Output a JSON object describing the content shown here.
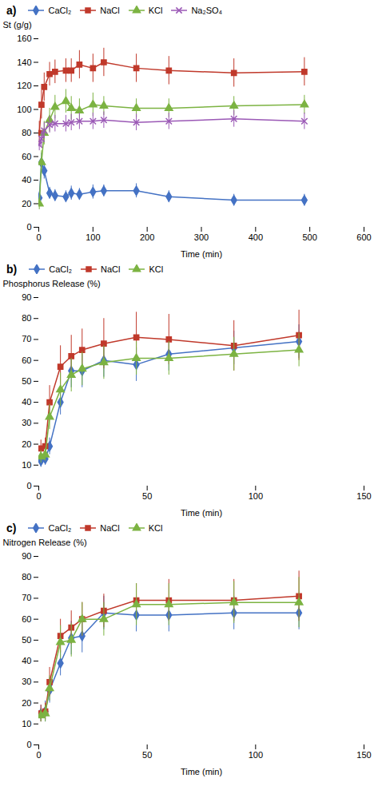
{
  "chart_data": [
    {
      "type": "line",
      "title": "a)",
      "xlabel": "Time (min)",
      "ylabel": "St (g/g)",
      "xlim": [
        0,
        600
      ],
      "ylim": [
        0,
        160
      ],
      "xticks": [
        0,
        100,
        200,
        300,
        400,
        500,
        600
      ],
      "yticks": [
        0,
        20,
        40,
        60,
        80,
        100,
        120,
        140,
        160
      ],
      "grid": false,
      "legend": "top",
      "x": [
        1,
        5,
        10,
        20,
        30,
        50,
        60,
        75,
        100,
        120,
        180,
        240,
        360,
        490
      ],
      "series": [
        {
          "name": "CaCl₂",
          "color": "#4472C4",
          "marker": "diamond",
          "values": [
            25,
            55,
            48,
            29,
            27,
            26,
            29,
            28,
            30,
            31,
            31,
            26,
            23,
            23
          ],
          "yerr": [
            5,
            8,
            7,
            5,
            5,
            5,
            6,
            5,
            6,
            5,
            6,
            5,
            5,
            5
          ]
        },
        {
          "name": "NaCl",
          "color": "#C0392B",
          "marker": "square",
          "values": [
            80,
            104,
            119,
            130,
            132,
            133,
            133,
            138,
            135,
            140,
            135,
            133,
            131,
            132
          ],
          "yerr": [
            10,
            12,
            12,
            10,
            10,
            10,
            10,
            12,
            12,
            12,
            12,
            12,
            12,
            12
          ]
        },
        {
          "name": "KCl",
          "color": "#7CB342",
          "marker": "triangle",
          "values": [
            20,
            55,
            80,
            91,
            102,
            107,
            101,
            99,
            104,
            103,
            101,
            101,
            103,
            104
          ],
          "yerr": [
            5,
            10,
            10,
            10,
            10,
            10,
            10,
            10,
            10,
            8,
            8,
            8,
            8,
            8
          ]
        },
        {
          "name": "Na₂SO₄",
          "color": "#9B59B6",
          "marker": "x",
          "values": [
            70,
            75,
            82,
            87,
            88,
            88,
            89,
            90,
            90,
            91,
            89,
            90,
            92,
            90
          ],
          "yerr": [
            5,
            7,
            7,
            7,
            7,
            7,
            7,
            7,
            7,
            7,
            7,
            7,
            7,
            7
          ]
        }
      ]
    },
    {
      "type": "line",
      "title": "b)",
      "xlabel": "Time (min)",
      "ylabel": "Phosphorus Release (%)",
      "xlim": [
        0,
        150
      ],
      "ylim": [
        0,
        90
      ],
      "xticks": [
        0,
        50,
        100,
        150
      ],
      "yticks": [
        0,
        10,
        20,
        30,
        40,
        50,
        60,
        70,
        80,
        90
      ],
      "grid": false,
      "legend": "top",
      "x": [
        1,
        3,
        5,
        10,
        15,
        20,
        30,
        45,
        60,
        90,
        120
      ],
      "series": [
        {
          "name": "CaCl₂",
          "color": "#4472C4",
          "marker": "diamond",
          "values": [
            12,
            13,
            19,
            40,
            55,
            55,
            60,
            58,
            63,
            66,
            69
          ],
          "yerr": [
            3,
            3,
            4,
            6,
            8,
            8,
            8,
            8,
            8,
            8,
            8
          ]
        },
        {
          "name": "NaCl",
          "color": "#C0392B",
          "marker": "square",
          "values": [
            18,
            19,
            40,
            57,
            62,
            65,
            68,
            71,
            70,
            67,
            72
          ],
          "yerr": [
            4,
            4,
            8,
            10,
            10,
            10,
            12,
            12,
            12,
            12,
            12
          ]
        },
        {
          "name": "KCl",
          "color": "#7CB342",
          "marker": "triangle",
          "values": [
            14,
            15,
            33,
            46,
            53,
            56,
            59,
            61,
            61,
            63,
            65
          ],
          "yerr": [
            3,
            3,
            6,
            8,
            8,
            8,
            8,
            8,
            8,
            8,
            8
          ]
        }
      ]
    },
    {
      "type": "line",
      "title": "c)",
      "xlabel": "Time (min)",
      "ylabel": "Nitrogen Release (%)",
      "xlim": [
        0,
        150
      ],
      "ylim": [
        0,
        90
      ],
      "xticks": [
        0,
        50,
        100,
        150
      ],
      "yticks": [
        0,
        10,
        20,
        30,
        40,
        50,
        60,
        70,
        80,
        90
      ],
      "grid": false,
      "legend": "top",
      "x": [
        1,
        3,
        5,
        10,
        15,
        20,
        30,
        45,
        60,
        90,
        120
      ],
      "series": [
        {
          "name": "CaCl₂",
          "color": "#4472C4",
          "marker": "diamond",
          "values": [
            15,
            16,
            26,
            39,
            51,
            52,
            63,
            62,
            62,
            63,
            63
          ],
          "yerr": [
            4,
            5,
            6,
            6,
            8,
            8,
            8,
            8,
            8,
            8,
            8
          ]
        },
        {
          "name": "NaCl",
          "color": "#C0392B",
          "marker": "square",
          "values": [
            15,
            16,
            30,
            52,
            56,
            60,
            64,
            69,
            69,
            69,
            71
          ],
          "yerr": [
            4,
            4,
            7,
            8,
            8,
            8,
            8,
            8,
            10,
            10,
            12
          ]
        },
        {
          "name": "KCl",
          "color": "#7CB342",
          "marker": "triangle",
          "values": [
            14,
            15,
            27,
            49,
            50,
            60,
            60,
            67,
            67,
            68,
            68
          ],
          "yerr": [
            3,
            4,
            6,
            8,
            8,
            8,
            8,
            10,
            10,
            10,
            12
          ]
        }
      ]
    }
  ]
}
